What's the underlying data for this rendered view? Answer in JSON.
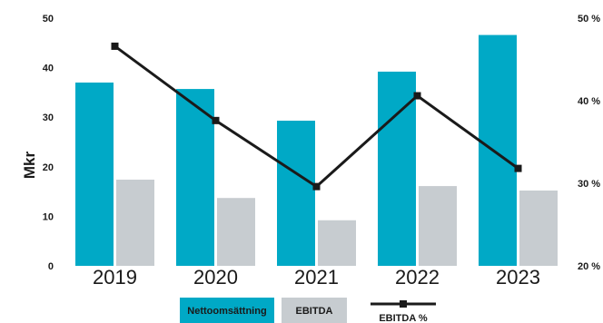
{
  "chart_data": {
    "type": "bar",
    "title": "",
    "xlabel": "",
    "ylabel": "Mkr",
    "categories": [
      "2019",
      "2020",
      "2021",
      "2022",
      "2023"
    ],
    "ylim": [
      0,
      50
    ],
    "y_ticks": [
      "0",
      "10",
      "20",
      "30",
      "40",
      "50"
    ],
    "y2lim": [
      20,
      50
    ],
    "y2_ticks": [
      "20 %",
      "30 %",
      "40 %",
      "50 %"
    ],
    "grid": false,
    "legend_position": "bottom",
    "series": [
      {
        "name": "Nettoomsättning",
        "type": "bar",
        "axis": "left",
        "color": "#00a9c6",
        "values": [
          37,
          35.7,
          29.3,
          39.2,
          46.6
        ]
      },
      {
        "name": "EBITDA",
        "type": "bar",
        "axis": "left",
        "color": "#c7ccd0",
        "values": [
          17.4,
          13.7,
          9.2,
          16.1,
          15.2
        ]
      },
      {
        "name": "EBITDA %",
        "type": "line",
        "axis": "right",
        "color": "#1a1a1a",
        "values": [
          46.6,
          37.6,
          29.6,
          40.6,
          31.8
        ]
      }
    ]
  }
}
